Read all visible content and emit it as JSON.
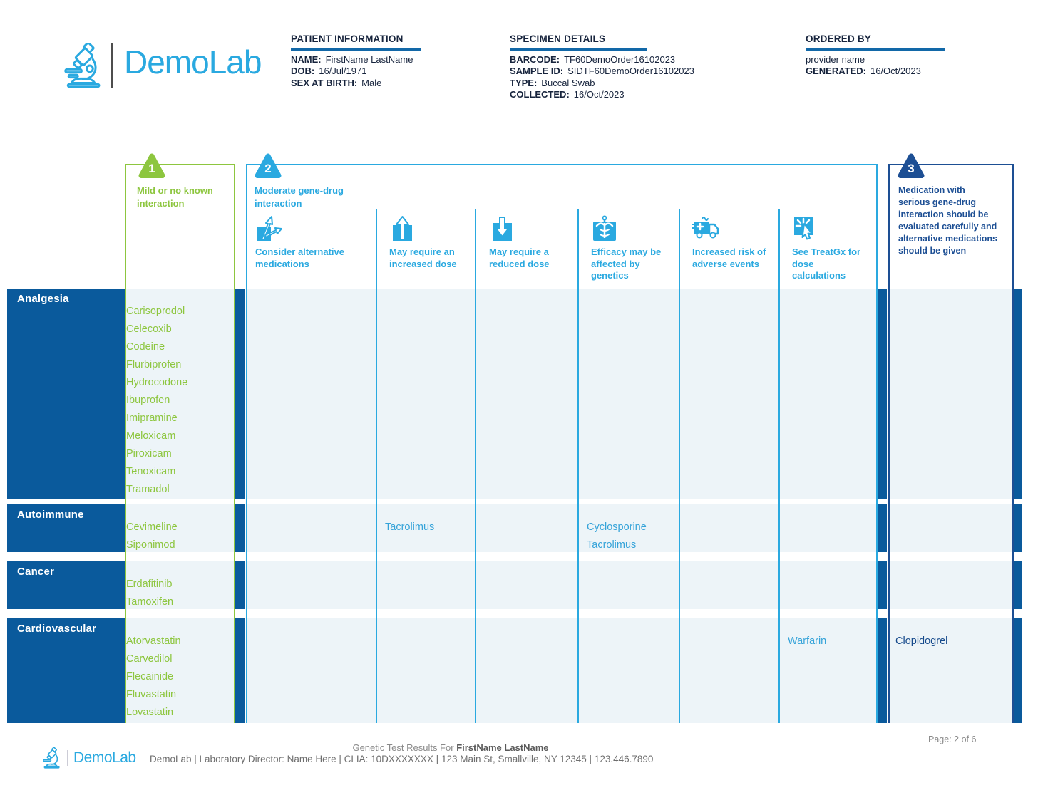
{
  "brand": {
    "name": "DemoLab"
  },
  "patient_information": {
    "heading": "PATIENT INFORMATION",
    "fields": [
      {
        "label": "NAME:",
        "value": "FirstName LastName"
      },
      {
        "label": "DOB:",
        "value": "16/Jul/1971"
      },
      {
        "label": "SEX AT BIRTH:",
        "value": "Male"
      }
    ]
  },
  "specimen_details": {
    "heading": "SPECIMEN DETAILS",
    "fields": [
      {
        "label": "BARCODE:",
        "value": "TF60DemoOrder16102023"
      },
      {
        "label": "SAMPLE ID:",
        "value": "SIDTF60DemoOrder16102023"
      },
      {
        "label": "TYPE:",
        "value": "Buccal Swab"
      },
      {
        "label": "COLLECTED:",
        "value": "16/Oct/2023"
      }
    ]
  },
  "ordered_by": {
    "heading": "ORDERED BY",
    "provider": "provider name",
    "fields": [
      {
        "label": "GENERATED:",
        "value": "16/Oct/2023"
      }
    ]
  },
  "legend": {
    "level1": {
      "number": "1",
      "label": "Mild or no known interaction",
      "color": "#8dc63f"
    },
    "level2": {
      "number": "2",
      "label": "Moderate gene-drug interaction",
      "color": "#2aa9e0"
    },
    "level3": {
      "number": "3",
      "label": "Medication with serious gene-drug interaction should be evaluated carefully and alternative medications should be given",
      "color": "#1d4f94"
    }
  },
  "subcolumns": [
    {
      "label": "Consider alternative medications",
      "icon": "alternative-medications-icon"
    },
    {
      "label": "May require an increased dose",
      "icon": "increased-dose-icon"
    },
    {
      "label": "May require a reduced dose",
      "icon": "reduced-dose-icon"
    },
    {
      "label": "Efficacy may be affected by genetics",
      "icon": "efficacy-genetics-icon"
    },
    {
      "label": "Increased risk of adverse events",
      "icon": "adverse-events-icon"
    },
    {
      "label": "See TreatGx for dose calculations",
      "icon": "treatgx-dose-icon"
    }
  ],
  "table": {
    "rows": [
      {
        "category": "Analgesia",
        "level1": [
          "Carisoprodol",
          "Celecoxib",
          "Codeine",
          "Flurbiprofen",
          "Hydrocodone",
          "Ibuprofen",
          "Imipramine",
          "Meloxicam",
          "Piroxicam",
          "Tenoxicam",
          "Tramadol"
        ],
        "alternative": [],
        "increased": [],
        "reduced": [],
        "efficacy": [],
        "adverse": [],
        "treatgx": [],
        "level3": []
      },
      {
        "category": "Autoimmune",
        "level1": [
          "Cevimeline",
          "Siponimod"
        ],
        "alternative": [],
        "increased": [
          "Tacrolimus"
        ],
        "reduced": [],
        "efficacy": [
          "Cyclosporine",
          "Tacrolimus"
        ],
        "adverse": [],
        "treatgx": [],
        "level3": []
      },
      {
        "category": "Cancer",
        "level1": [
          "Erdafitinib",
          "Tamoxifen"
        ],
        "alternative": [],
        "increased": [],
        "reduced": [],
        "efficacy": [],
        "adverse": [],
        "treatgx": [],
        "level3": []
      },
      {
        "category": "Cardiovascular",
        "level1": [
          "Atorvastatin",
          "Carvedilol",
          "Flecainide",
          "Fluvastatin",
          "Lovastatin"
        ],
        "alternative": [],
        "increased": [],
        "reduced": [],
        "efficacy": [],
        "adverse": [],
        "treatgx": [
          "Warfarin"
        ],
        "level3": [
          "Clopidogrel"
        ]
      }
    ]
  },
  "footer": {
    "page": "Page: 2 of 6",
    "results_for_prefix": "Genetic Test Results For ",
    "results_for_name": "FirstName LastName",
    "brand": "DemoLab",
    "info": "DemoLab | Laboratory Director: Name Here | CLIA: 10DXXXXXXX | 123 Main St, Smallville, NY 12345 | 123.446.7890"
  }
}
